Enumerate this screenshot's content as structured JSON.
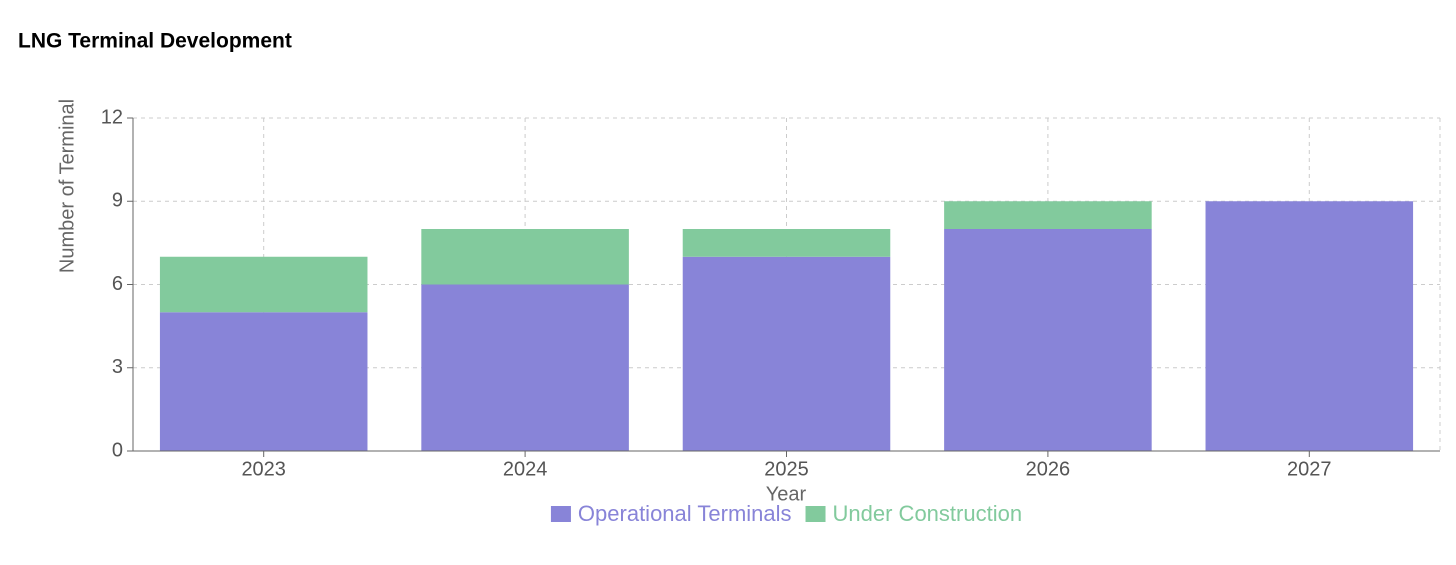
{
  "chart_data": {
    "type": "stacked-bar",
    "title": "LNG Terminal Development",
    "x_label": "Year",
    "y_label": "Number of Terminal",
    "categories": [
      "2023",
      "2024",
      "2025",
      "2026",
      "2027"
    ],
    "series": [
      {
        "name": "Operational Terminals",
        "color": "#8884d8",
        "values": [
          5,
          6,
          7,
          8,
          9
        ]
      },
      {
        "name": "Under Construction",
        "color": "#82ca9d",
        "values": [
          2,
          2,
          1,
          1,
          0
        ]
      }
    ],
    "ylim": [
      0,
      12
    ],
    "yticks": [
      0,
      3,
      6,
      9,
      12
    ],
    "grid": true
  }
}
